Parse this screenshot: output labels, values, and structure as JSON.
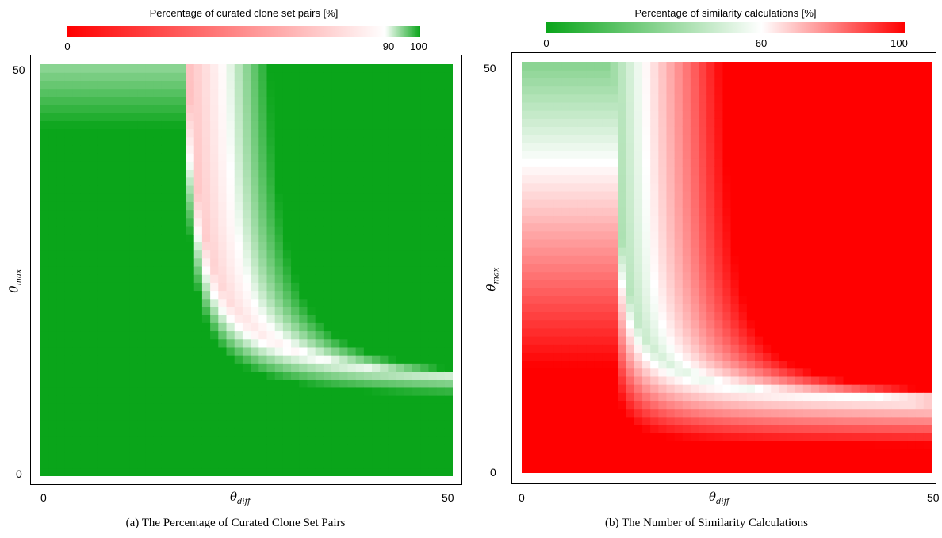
{
  "chart_data": [
    {
      "type": "heatmap",
      "caption": "(a) The Percentage of Curated Clone Set Pairs",
      "colorbar": {
        "title": "Percentage of curated clone set pairs [%]",
        "ticks": [
          "0",
          "90",
          "100"
        ],
        "tick_values": [
          0,
          90,
          100
        ],
        "range": [
          0,
          100
        ],
        "colors": {
          "low": "#ff0000",
          "mid": "#ffffff",
          "mid_value": 90,
          "high": "#0aa51a"
        }
      },
      "xlabel_symbol": "θ",
      "xlabel_sub": "diff",
      "ylabel_symbol": "θ",
      "ylabel_sub": "max",
      "xticks": [
        "0",
        "50"
      ],
      "yticks": [
        "0",
        "50"
      ],
      "xlim": [
        0,
        50
      ],
      "ylim": [
        0,
        50
      ],
      "grid": false,
      "z_description": "percentage of curated clone set pairs; red near x=0, white boundary around x≈22 for large y, bending to y≈13 at large x, green at right and bottom"
    },
    {
      "type": "heatmap",
      "caption": "(b) The Number of Similarity Calculations",
      "colorbar": {
        "title": "Percentage of similarity calculations [%]",
        "ticks": [
          "0",
          "60",
          "100"
        ],
        "tick_values": [
          0,
          60,
          100
        ],
        "range": [
          0,
          100
        ],
        "colors": {
          "low": "#0aa51a",
          "mid": "#ffffff",
          "mid_value": 60,
          "high": "#ff0000"
        }
      },
      "xlabel_symbol": "θ",
      "xlabel_sub": "diff",
      "ylabel_symbol": "θ",
      "ylabel_sub": "max",
      "xticks": [
        "0",
        "50"
      ],
      "yticks": [
        "0",
        "50"
      ],
      "xlim": [
        0,
        50
      ],
      "ylim": [
        0,
        50
      ],
      "grid": false,
      "z_description": "percentage of similarity calculations; green near x=0, white boundary around x≈15 for large y, bending to y≈8 at large x, red at right and bottom"
    }
  ]
}
